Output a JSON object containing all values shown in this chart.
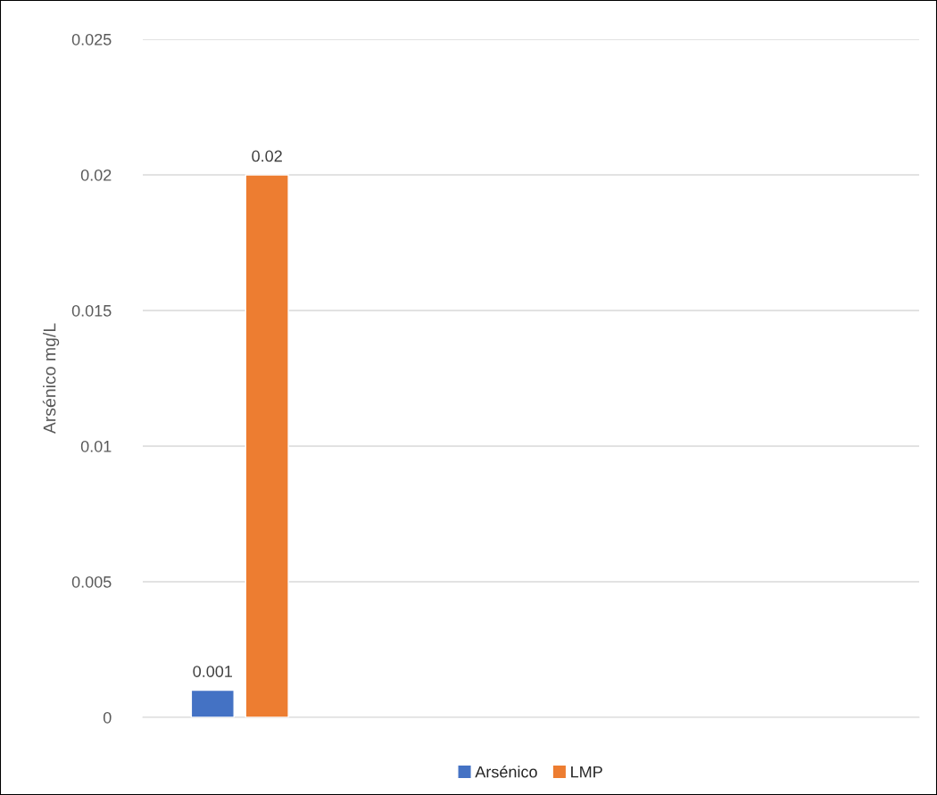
{
  "chart_data": {
    "type": "bar",
    "ylabel": "Arsénico mg/L",
    "categories": [
      null,
      null,
      null,
      null
    ],
    "series": [
      {
        "name": "Arsénico",
        "color": "#4472c4",
        "values": [
          0.001,
          null,
          null,
          null
        ]
      },
      {
        "name": "LMP",
        "color": "#ed7d31",
        "values": [
          0.02,
          null,
          null,
          null
        ]
      }
    ],
    "ylim": [
      0,
      0.025
    ],
    "yticks": [
      0,
      0.005,
      0.01,
      0.015,
      0.02,
      0.025
    ],
    "grid": "y",
    "legend": "bottom",
    "data_labels": true,
    "tick_labels": "y"
  }
}
